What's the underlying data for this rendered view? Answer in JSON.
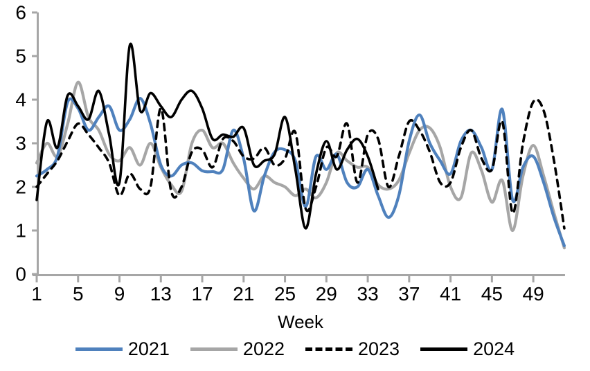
{
  "chart_data": {
    "type": "line",
    "title": "",
    "xlabel": "Week",
    "ylabel": "",
    "xlim": [
      1,
      52
    ],
    "ylim": [
      0,
      6
    ],
    "x_ticks": [
      1,
      5,
      9,
      13,
      17,
      21,
      25,
      29,
      33,
      37,
      41,
      45,
      49
    ],
    "y_ticks": [
      0,
      1,
      2,
      3,
      4,
      5,
      6
    ],
    "grid": false,
    "legend_position": "bottom",
    "axis_color": "#A6A6A6",
    "text_color": "#000000",
    "x": [
      1,
      2,
      3,
      4,
      5,
      6,
      7,
      8,
      9,
      10,
      11,
      12,
      13,
      14,
      15,
      16,
      17,
      18,
      19,
      20,
      21,
      22,
      23,
      24,
      25,
      26,
      27,
      28,
      29,
      30,
      31,
      32,
      33,
      34,
      35,
      36,
      37,
      38,
      39,
      40,
      41,
      42,
      43,
      44,
      45,
      46,
      47,
      48,
      49,
      50,
      51,
      52
    ],
    "series": [
      {
        "name": "2021",
        "color": "#4F81BD",
        "style": "solid",
        "values": [
          2.25,
          2.4,
          2.7,
          3.95,
          3.8,
          3.3,
          3.6,
          3.85,
          3.3,
          3.55,
          4.03,
          3.45,
          2.5,
          2.25,
          2.5,
          2.55,
          2.37,
          2.35,
          2.4,
          3.3,
          2.65,
          1.45,
          2.25,
          2.8,
          2.85,
          2.6,
          1.55,
          2.7,
          2.4,
          2.75,
          2.1,
          2.0,
          2.4,
          1.8,
          1.3,
          1.8,
          3.05,
          3.65,
          3.0,
          2.6,
          2.3,
          3.05,
          3.3,
          2.9,
          2.4,
          3.78,
          1.7,
          2.45,
          2.7,
          2.1,
          1.3,
          0.65
        ]
      },
      {
        "name": "2022",
        "color": "#A6A6A6",
        "style": "solid",
        "values": [
          2.55,
          3.0,
          2.7,
          3.45,
          4.4,
          3.6,
          3.3,
          2.75,
          2.6,
          2.9,
          2.5,
          3.0,
          2.45,
          2.05,
          1.9,
          3.0,
          3.3,
          2.9,
          3.0,
          2.55,
          2.2,
          1.95,
          2.25,
          2.1,
          2.0,
          1.8,
          1.95,
          1.75,
          2.1,
          2.78,
          2.6,
          2.45,
          2.45,
          2.05,
          1.95,
          2.15,
          2.77,
          3.3,
          3.35,
          2.9,
          2.0,
          1.75,
          2.78,
          2.37,
          1.65,
          2.15,
          1.0,
          2.25,
          2.95,
          2.25,
          1.4,
          0.6
        ]
      },
      {
        "name": "2023",
        "color": "#000000",
        "style": "dashed",
        "values": [
          2.0,
          2.3,
          2.6,
          3.05,
          3.45,
          3.2,
          2.9,
          2.55,
          1.8,
          2.3,
          1.95,
          2.0,
          3.8,
          1.9,
          2.0,
          2.8,
          2.85,
          2.45,
          3.1,
          3.05,
          2.7,
          2.65,
          2.9,
          2.5,
          2.65,
          3.25,
          1.5,
          2.0,
          2.9,
          2.7,
          3.45,
          2.1,
          3.2,
          3.1,
          2.0,
          2.7,
          3.5,
          3.3,
          2.8,
          2.1,
          2.1,
          2.9,
          3.3,
          2.65,
          2.4,
          3.5,
          1.4,
          3.0,
          3.95,
          3.75,
          2.6,
          1.05
        ]
      },
      {
        "name": "2024",
        "color": "#000000",
        "style": "solid",
        "values": [
          1.7,
          3.5,
          2.9,
          4.1,
          3.85,
          3.55,
          4.2,
          3.2,
          2.1,
          5.25,
          3.75,
          4.15,
          3.85,
          3.6,
          4.0,
          4.2,
          3.8,
          3.1,
          3.2,
          3.15,
          3.35,
          2.5,
          2.6,
          2.75,
          3.6,
          2.4,
          1.05,
          2.3,
          3.05,
          2.4,
          2.85,
          3.1,
          2.7,
          1.95
        ]
      }
    ]
  },
  "legend": {
    "items": [
      {
        "label": "2021"
      },
      {
        "label": "2022"
      },
      {
        "label": "2023"
      },
      {
        "label": "2024"
      }
    ]
  }
}
